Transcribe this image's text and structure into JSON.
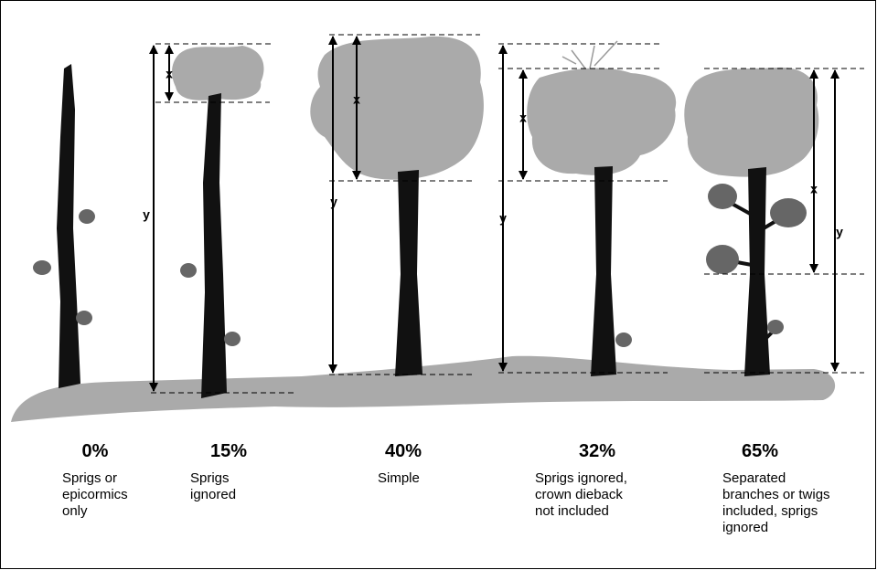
{
  "marker_labels": {
    "x": "x",
    "y": "y"
  },
  "trees": [
    {
      "percent": "0%",
      "caption": [
        "Sprigs or",
        "epicormics",
        "only"
      ]
    },
    {
      "percent": "15%",
      "caption": [
        "Sprigs",
        "ignored"
      ]
    },
    {
      "percent": "40%",
      "caption": [
        "Simple"
      ]
    },
    {
      "percent": "32%",
      "caption": [
        "Sprigs ignored,",
        "crown dieback",
        "not included"
      ]
    },
    {
      "percent": "65%",
      "caption": [
        "Separated",
        "branches or twigs",
        "included, sprigs",
        "ignored"
      ]
    }
  ]
}
